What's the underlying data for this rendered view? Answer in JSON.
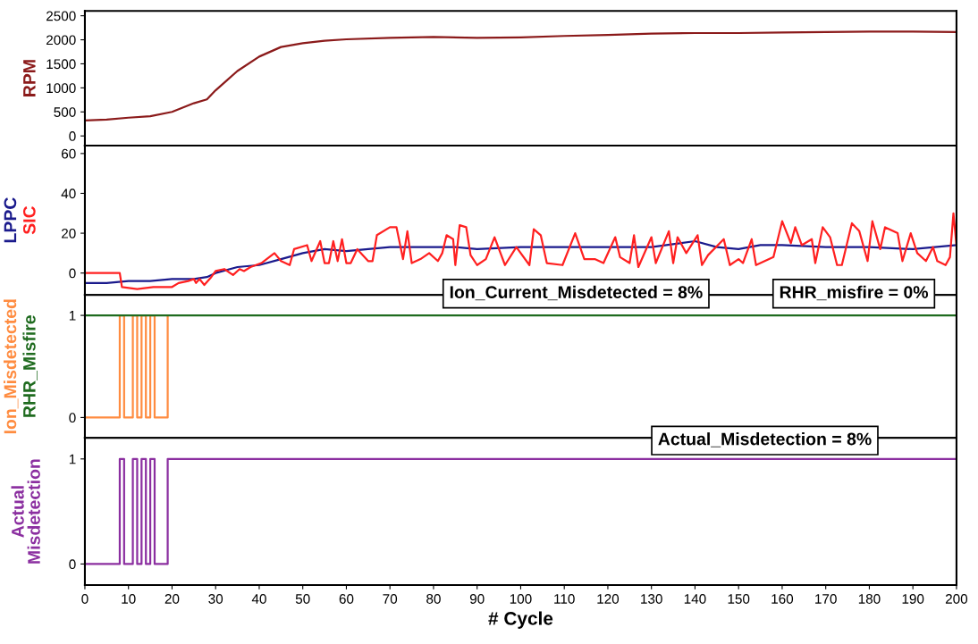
{
  "chart_data": [
    {
      "type": "line",
      "xlim": [
        0,
        200
      ],
      "xticks": [
        0,
        10,
        20,
        30,
        40,
        50,
        60,
        70,
        80,
        90,
        100,
        110,
        120,
        130,
        140,
        150,
        160,
        170,
        180,
        190,
        200
      ],
      "ylim": [
        -200,
        2600
      ],
      "yticks": [
        0,
        500,
        1000,
        1500,
        2000,
        2500
      ],
      "tick_labels": "y",
      "grid": false,
      "legend": false,
      "series": [
        {
          "name": "RPM",
          "color": "#8b1a1a",
          "x": [
            0,
            5,
            10,
            15,
            20,
            25,
            28,
            30,
            35,
            40,
            45,
            50,
            55,
            60,
            70,
            80,
            90,
            100,
            110,
            120,
            130,
            140,
            150,
            160,
            170,
            180,
            190,
            200
          ],
          "values": [
            320,
            340,
            380,
            410,
            500,
            680,
            760,
            950,
            1350,
            1650,
            1850,
            1930,
            1980,
            2010,
            2040,
            2060,
            2040,
            2050,
            2080,
            2100,
            2130,
            2140,
            2140,
            2150,
            2160,
            2170,
            2170,
            2160
          ]
        }
      ]
    },
    {
      "type": "line",
      "xlim": [
        0,
        200
      ],
      "xticks": [
        0,
        10,
        20,
        30,
        40,
        50,
        60,
        70,
        80,
        90,
        100,
        110,
        120,
        130,
        140,
        150,
        160,
        170,
        180,
        190,
        200
      ],
      "ylim": [
        -11,
        64
      ],
      "yticks": [
        0,
        20,
        40,
        60
      ],
      "tick_labels": "y",
      "grid": false,
      "legend": false,
      "series": [
        {
          "name": "LPPC",
          "color": "#1a1a8c",
          "x": [
            0,
            5,
            10,
            15,
            20,
            25,
            28,
            30,
            35,
            40,
            45,
            50,
            55,
            60,
            65,
            70,
            75,
            80,
            85,
            90,
            100,
            110,
            120,
            130,
            140,
            145,
            150,
            155,
            160,
            170,
            180,
            190,
            200
          ],
          "values": [
            -5,
            -5,
            -4,
            -4,
            -3,
            -3,
            -2,
            0,
            3,
            4,
            7,
            10,
            12,
            11,
            12,
            13,
            13,
            13,
            13,
            12,
            13,
            13,
            13,
            13,
            16,
            13,
            12,
            14,
            14,
            13,
            13,
            12,
            14
          ]
        },
        {
          "name": "SIC",
          "color": "#ff2020",
          "x": [
            0,
            8,
            8.5,
            12,
            15.7,
            20,
            21.5,
            23.7,
            25,
            25.5,
            26.3,
            27.4,
            29,
            30,
            32,
            34,
            35.5,
            36.5,
            38,
            40.5,
            43.5,
            45,
            47,
            48,
            51,
            52,
            54,
            55,
            56,
            57,
            58,
            59,
            60,
            61,
            62.5,
            65,
            66,
            67,
            70,
            71.5,
            73,
            74,
            75,
            77,
            79,
            81,
            82,
            83,
            84.5,
            85,
            86,
            87.5,
            88.5,
            90,
            92,
            94,
            96.4,
            99,
            102,
            103,
            104.6,
            106,
            109.6,
            112.5,
            114.6,
            117,
            119,
            121.7,
            122.8,
            125,
            126,
            127,
            130,
            131,
            134,
            135,
            136,
            138,
            140.6,
            141.6,
            143,
            146.6,
            148,
            150,
            151,
            153,
            154,
            158,
            160,
            162,
            163,
            164.5,
            166.8,
            167.6,
            169.3,
            171,
            172.6,
            173.7,
            176,
            177.7,
            179.6,
            180.7,
            182.5,
            183.6,
            186.5,
            187.6,
            189.5,
            191,
            193,
            194.6,
            195.6,
            197.5,
            198.5,
            199.3,
            200
          ],
          "values": [
            0,
            0,
            -7,
            -8,
            -7,
            -7,
            -5,
            -4,
            -3,
            -5,
            -3,
            -6,
            -2,
            1,
            2,
            -1,
            2,
            1,
            3,
            5,
            10,
            6,
            4,
            12,
            14,
            6,
            16,
            5,
            5,
            16,
            6,
            17,
            5,
            5,
            12,
            6,
            6,
            19,
            23,
            23,
            7,
            21,
            5,
            7,
            10,
            6,
            10,
            19,
            17,
            4,
            24,
            23,
            9,
            4,
            7,
            18,
            4,
            13,
            4,
            22,
            19,
            5,
            4,
            20,
            7,
            7,
            5,
            18,
            8,
            5,
            19,
            3,
            18,
            5,
            21,
            5,
            18,
            10,
            19,
            4,
            9,
            17,
            4,
            7,
            5,
            17,
            4,
            8,
            26,
            15,
            23,
            14,
            17,
            5,
            23,
            18,
            4,
            4,
            25,
            21,
            6,
            26,
            12,
            23,
            20,
            6,
            20,
            10,
            6,
            13,
            6,
            4,
            8,
            30,
            14
          ]
        }
      ],
      "annotations": [
        "Ion_Current_Misdetected = 8%",
        "RHR_misfire = 0%"
      ]
    },
    {
      "type": "step",
      "xlim": [
        0,
        200
      ],
      "xticks": [
        0,
        10,
        20,
        30,
        40,
        50,
        60,
        70,
        80,
        90,
        100,
        110,
        120,
        130,
        140,
        150,
        160,
        170,
        180,
        190,
        200
      ],
      "ylim": [
        -0.2,
        1.2
      ],
      "yticks": [
        0,
        1
      ],
      "tick_labels": "y",
      "grid": false,
      "legend": false,
      "series": [
        {
          "name": "Ion_Misdetected",
          "color": "#ff8c40",
          "x": [
            0,
            8,
            9,
            11,
            12,
            13,
            14,
            15,
            16,
            19
          ],
          "values": [
            0,
            1,
            0,
            1,
            0,
            1,
            0,
            1,
            0,
            1
          ]
        },
        {
          "name": "RHR_Misfire",
          "color": "#1f6b1f",
          "x": [
            0,
            200
          ],
          "values": [
            1,
            1
          ]
        }
      ]
    },
    {
      "type": "step",
      "xlim": [
        0,
        200
      ],
      "xticks": [
        0,
        10,
        20,
        30,
        40,
        50,
        60,
        70,
        80,
        90,
        100,
        110,
        120,
        130,
        140,
        150,
        160,
        170,
        180,
        190,
        200
      ],
      "ylim": [
        -0.2,
        1.2
      ],
      "yticks": [
        0,
        1
      ],
      "xlabel": "# Cycle",
      "grid": false,
      "legend": false,
      "series": [
        {
          "name": "Actual\nMisdetection",
          "color": "#8b2fa0",
          "x": [
            0,
            8,
            9,
            11,
            12,
            13,
            14,
            15,
            16,
            19,
            200
          ],
          "values": [
            0,
            1,
            0,
            1,
            0,
            1,
            0,
            1,
            0,
            1,
            1
          ]
        }
      ],
      "annotations": [
        "Actual_Misdetection = 8%"
      ]
    }
  ]
}
